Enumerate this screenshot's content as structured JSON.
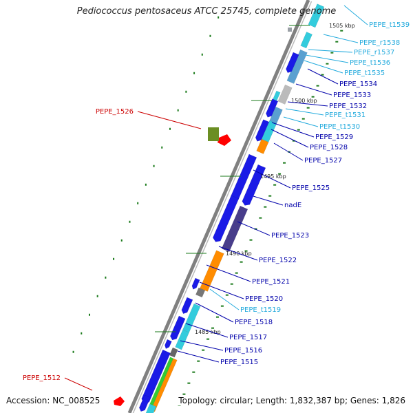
{
  "title": "Pediococcus pentosaceus ATCC 25745, complete genome",
  "accession": "Accession: NC_008525",
  "topology": "Topology: circular; Length: 1,832,387 bp; Genes: 1,826",
  "colors": {
    "backbone": "#808080",
    "cds": "#1a1ae6",
    "trna": "#33ccdd",
    "rrna": "#5aa0d0",
    "kbp_tick": "#1a7a1a",
    "outer_dots": "#1a7a1a",
    "red_feature": "#ff0000",
    "olive_feature": "#6b8e23",
    "label_blue": "#0000aa",
    "label_cyan": "#22aadd",
    "label_red": "#cc0000"
  },
  "scale_marks": [
    "1505 kbp",
    "1500 kbp",
    "1495 kbp",
    "1490 kbp",
    "1485 kbp"
  ],
  "labels": [
    {
      "text": "PEPE_t1539",
      "kind": "trna"
    },
    {
      "text": "PEPE_r1538",
      "kind": "trna"
    },
    {
      "text": "PEPE_r1537",
      "kind": "trna"
    },
    {
      "text": "PEPE_t1536",
      "kind": "trna"
    },
    {
      "text": "PEPE_t1535",
      "kind": "trna"
    },
    {
      "text": "PEPE_1534",
      "kind": "cds"
    },
    {
      "text": "PEPE_1533",
      "kind": "cds"
    },
    {
      "text": "PEPE_1532",
      "kind": "cds"
    },
    {
      "text": "PEPE_t1531",
      "kind": "trna"
    },
    {
      "text": "PEPE_t1530",
      "kind": "trna"
    },
    {
      "text": "PEPE_1529",
      "kind": "cds"
    },
    {
      "text": "PEPE_1528",
      "kind": "cds"
    },
    {
      "text": "PEPE_1527",
      "kind": "cds"
    },
    {
      "text": "PEPE_1526",
      "kind": "red"
    },
    {
      "text": "PEPE_1525",
      "kind": "cds"
    },
    {
      "text": "nadE",
      "kind": "cds"
    },
    {
      "text": "PEPE_1523",
      "kind": "cds"
    },
    {
      "text": "PEPE_1522",
      "kind": "cds"
    },
    {
      "text": "PEPE_1521",
      "kind": "cds"
    },
    {
      "text": "PEPE_1520",
      "kind": "cds"
    },
    {
      "text": "PEPE_t1519",
      "kind": "trna"
    },
    {
      "text": "PEPE_1518",
      "kind": "cds"
    },
    {
      "text": "PEPE_1517",
      "kind": "cds"
    },
    {
      "text": "PEPE_1516",
      "kind": "cds"
    },
    {
      "text": "PEPE_1515",
      "kind": "cds"
    },
    {
      "text": "PEPE_1512",
      "kind": "red"
    }
  ]
}
